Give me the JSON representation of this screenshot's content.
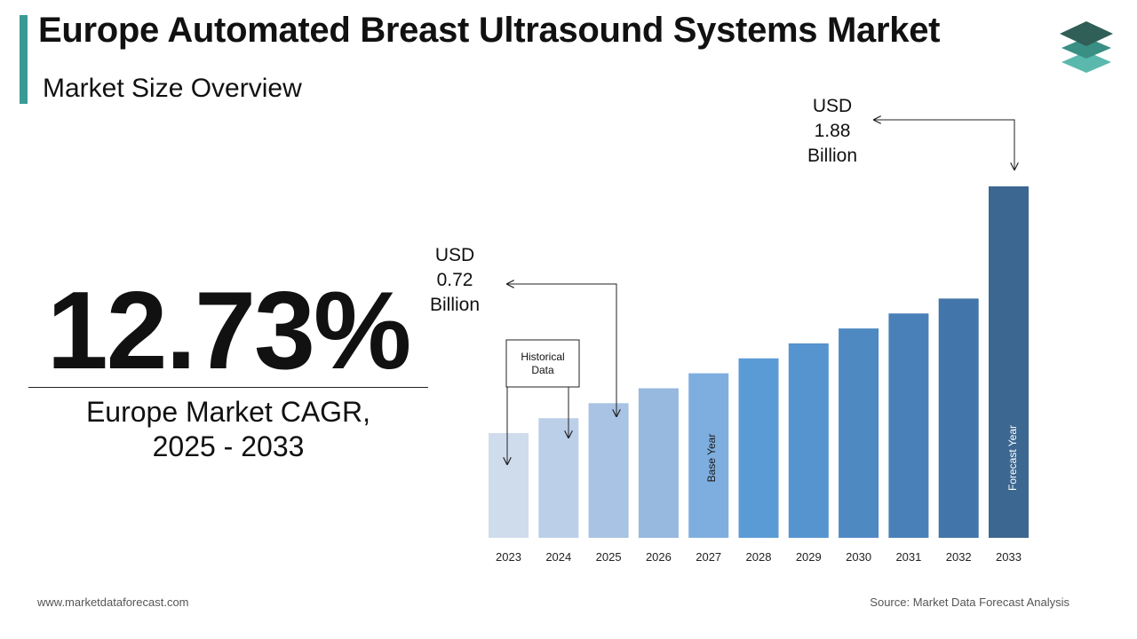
{
  "header": {
    "title": "Europe Automated Breast Ultrasound Systems Market",
    "subtitle": "Market Size Overview",
    "accent_color": "#3a9b95"
  },
  "logo": {
    "icon": "stacked-layers-icon",
    "colors": [
      "#2f5f57",
      "#3a8f85",
      "#5bb8ad"
    ]
  },
  "cagr": {
    "value": "12.73%",
    "label_line1": "Europe Market CAGR,",
    "label_line2": "2025 - 2033"
  },
  "chart_data": {
    "type": "bar",
    "categories": [
      "2023",
      "2024",
      "2025",
      "2026",
      "2027",
      "2028",
      "2029",
      "2030",
      "2031",
      "2032",
      "2033"
    ],
    "values": [
      0.56,
      0.64,
      0.72,
      0.8,
      0.88,
      0.96,
      1.04,
      1.12,
      1.2,
      1.28,
      1.88
    ],
    "bar_colors": [
      "#cfdcec",
      "#bccfe8",
      "#a8c3e3",
      "#97b8df",
      "#7eaedf",
      "#5b9bd5",
      "#5594cf",
      "#4f89c2",
      "#4a80b8",
      "#4275a9",
      "#3c6790"
    ],
    "ylim": [
      0,
      1.88
    ],
    "annotations": {
      "start_value": {
        "line1": "USD",
        "line2": "0.72",
        "line3": "Billion"
      },
      "end_value": {
        "line1": "USD",
        "line2": "1.88",
        "line3": "Billion"
      },
      "historical_box": {
        "line1": "Historical",
        "line2": "Data"
      },
      "base_year_label": "Base Year",
      "forecast_year_label": "Forecast Year"
    }
  },
  "footer": {
    "website": "www.marketdataforecast.com",
    "source": "Source: Market Data Forecast Analysis"
  }
}
